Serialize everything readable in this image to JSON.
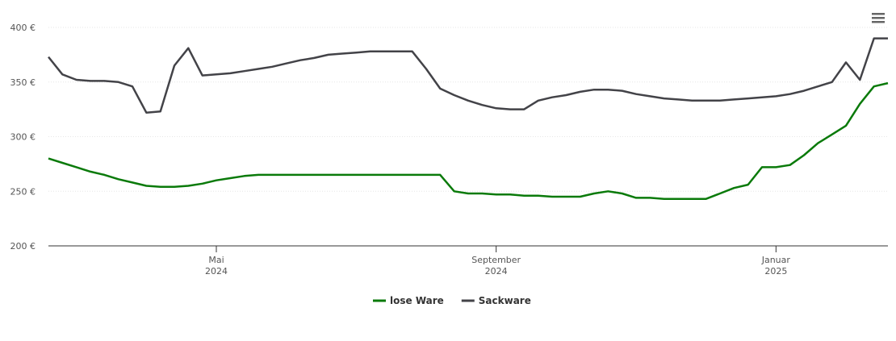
{
  "chart_data": {
    "type": "line",
    "categories": [
      null,
      null,
      null,
      null,
      null,
      null,
      null,
      null,
      null,
      null,
      null,
      null,
      "Mai 2024",
      null,
      null,
      null,
      null,
      null,
      null,
      null,
      null,
      null,
      null,
      null,
      null,
      null,
      null,
      null,
      null,
      null,
      null,
      null,
      "September 2024",
      null,
      null,
      null,
      null,
      null,
      null,
      null,
      null,
      null,
      null,
      null,
      null,
      null,
      null,
      null,
      null,
      null,
      null,
      null,
      "Januar 2025",
      null,
      null,
      null,
      null,
      null,
      null,
      null,
      null
    ],
    "series": [
      {
        "name": "lose Ware",
        "color": "#0a7a0a",
        "values": [
          280,
          276,
          272,
          268,
          265,
          261,
          258,
          255,
          254,
          254,
          255,
          257,
          260,
          262,
          264,
          265,
          265,
          265,
          265,
          265,
          265,
          265,
          265,
          265,
          265,
          265,
          265,
          265,
          265,
          250,
          248,
          248,
          247,
          247,
          246,
          246,
          245,
          245,
          245,
          248,
          250,
          248,
          244,
          244,
          243,
          243,
          243,
          243,
          248,
          253,
          256,
          272,
          272,
          274,
          283,
          294,
          302,
          310,
          330,
          346,
          349
        ]
      },
      {
        "name": "Sackware",
        "color": "#434348",
        "values": [
          373,
          357,
          352,
          351,
          351,
          350,
          346,
          322,
          323,
          365,
          381,
          356,
          357,
          358,
          360,
          362,
          364,
          367,
          370,
          372,
          375,
          376,
          377,
          378,
          378,
          378,
          378,
          362,
          344,
          338,
          333,
          329,
          326,
          325,
          325,
          333,
          336,
          338,
          341,
          343,
          343,
          342,
          339,
          337,
          335,
          334,
          333,
          333,
          333,
          334,
          335,
          336,
          337,
          339,
          342,
          346,
          350,
          368,
          352,
          390,
          390
        ]
      }
    ],
    "ylim": [
      200,
      400
    ],
    "yticks": [
      {
        "value": 200,
        "label": "200 €"
      },
      {
        "value": 250,
        "label": "250 €"
      },
      {
        "value": 300,
        "label": "300 €"
      },
      {
        "value": 350,
        "label": "350 €"
      },
      {
        "value": 400,
        "label": "400 €"
      }
    ],
    "grid": true,
    "legend": "bottom"
  }
}
